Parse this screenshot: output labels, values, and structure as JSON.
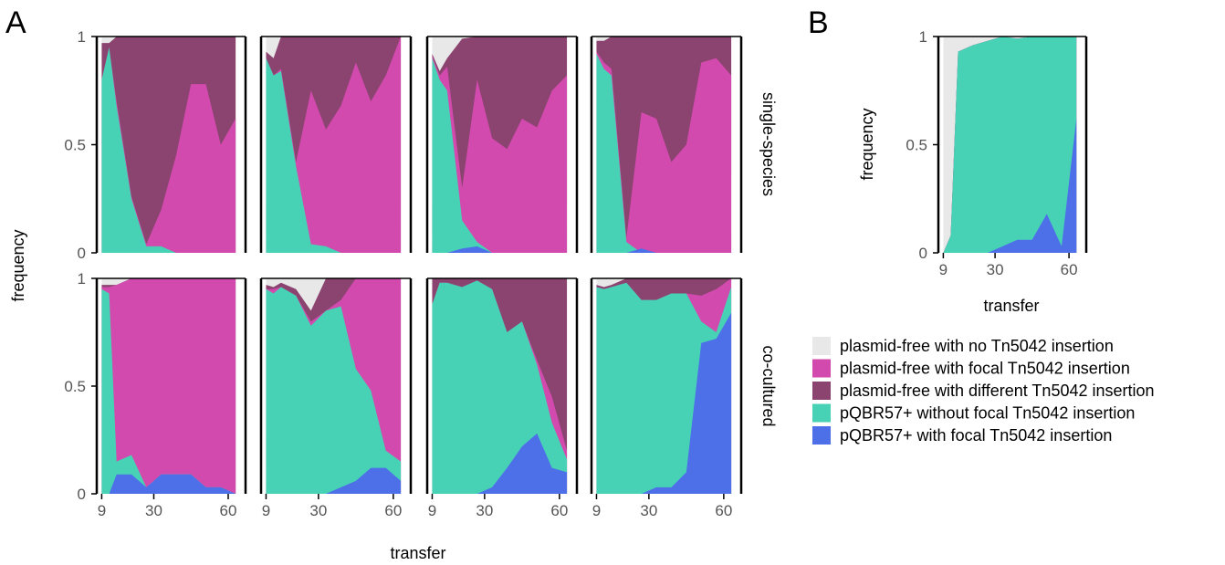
{
  "panel_labels": {
    "a": "A",
    "b": "B"
  },
  "axis": {
    "y_label": "frequency",
    "x_label": "transfer",
    "y_ticks": [
      "0",
      "0.5",
      "1"
    ],
    "x_ticks": [
      "9",
      "30",
      "60"
    ]
  },
  "facets": {
    "rows": [
      "single-species",
      "co-cultured"
    ]
  },
  "legend": [
    {
      "label": "plasmid-free with no Tn5042 insertion",
      "color": "#e8e8e8"
    },
    {
      "label": "plasmid-free with focal Tn5042 insertion",
      "color": "#d24aad"
    },
    {
      "label": "plasmid-free with different Tn5042 insertion",
      "color": "#8b4370"
    },
    {
      "label": "pQBR57+ without focal Tn5042 insertion",
      "color": "#48d2b5"
    },
    {
      "label": "pQBR57+ with focal Tn5042 insertion",
      "color": "#4d6fe8"
    }
  ],
  "chart_data": {
    "type": "area",
    "stacked": true,
    "stack_order_bottom_to_top": [
      "pQBR57+ with focal Tn5042 insertion",
      "pQBR57+ without focal Tn5042 insertion",
      "plasmid-free with focal Tn5042 insertion",
      "plasmid-free with different Tn5042 insertion",
      "plasmid-free with no Tn5042 insertion"
    ],
    "colors": [
      "#4d6fe8",
      "#48d2b5",
      "#d24aad",
      "#8b4370",
      "#e8e8e8"
    ],
    "xlim": [
      7,
      67
    ],
    "ylim": [
      0,
      1
    ],
    "xticks": [
      9,
      30,
      60
    ],
    "yticks": [
      0,
      0.5,
      1
    ],
    "xlabel": "transfer",
    "ylabel": "frequency",
    "panels": [
      {
        "row": "single-species",
        "col": 1,
        "x": [
          9,
          12,
          15,
          21,
          27,
          33,
          39,
          45,
          51,
          57,
          63
        ],
        "cumulative": [
          [
            0,
            0,
            0,
            0,
            0,
            0,
            0,
            0,
            0,
            0,
            0
          ],
          [
            0.8,
            0.95,
            0.68,
            0.25,
            0.03,
            0.03,
            0,
            0,
            0,
            0,
            0
          ],
          [
            0.8,
            0.95,
            0.7,
            0.26,
            0.04,
            0.2,
            0.45,
            0.78,
            0.78,
            0.5,
            0.62
          ],
          [
            0.97,
            0.97,
            1,
            1,
            1,
            1,
            1,
            1,
            1,
            1,
            1
          ],
          [
            1,
            1,
            1,
            1,
            1,
            1,
            1,
            1,
            1,
            1,
            1
          ]
        ]
      },
      {
        "row": "single-species",
        "col": 2,
        "x": [
          9,
          12,
          15,
          21,
          27,
          33,
          39,
          45,
          51,
          57,
          63
        ],
        "cumulative": [
          [
            0,
            0,
            0,
            0,
            0,
            0,
            0,
            0,
            0,
            0,
            0
          ],
          [
            0.9,
            0.82,
            0.84,
            0.4,
            0.04,
            0.03,
            0,
            0,
            0,
            0,
            0
          ],
          [
            0.9,
            0.82,
            0.85,
            0.42,
            0.75,
            0.57,
            0.68,
            0.88,
            0.7,
            0.82,
            1
          ],
          [
            0.93,
            0.9,
            1,
            1,
            1,
            1,
            1,
            1,
            1,
            1,
            1
          ],
          [
            1,
            1,
            1,
            1,
            1,
            1,
            1,
            1,
            1,
            1,
            1
          ]
        ]
      },
      {
        "row": "single-species",
        "col": 3,
        "x": [
          9,
          12,
          15,
          21,
          27,
          33,
          39,
          45,
          51,
          57,
          63
        ],
        "cumulative": [
          [
            0,
            0,
            0,
            0.02,
            0.03,
            0,
            0,
            0,
            0,
            0,
            0
          ],
          [
            0.9,
            0.8,
            0.75,
            0.15,
            0.05,
            0,
            0,
            0,
            0,
            0,
            0
          ],
          [
            0.91,
            0.82,
            0.86,
            0.3,
            0.8,
            0.53,
            0.48,
            0.62,
            0.58,
            0.75,
            0.82
          ],
          [
            0.92,
            0.84,
            0.9,
            0.99,
            1,
            1,
            1,
            1,
            1,
            1,
            1
          ],
          [
            1,
            1,
            1,
            1,
            1,
            1,
            1,
            1,
            1,
            1,
            1
          ]
        ]
      },
      {
        "row": "single-species",
        "col": 4,
        "x": [
          9,
          12,
          15,
          21,
          27,
          33,
          39,
          45,
          51,
          57,
          63
        ],
        "cumulative": [
          [
            0,
            0,
            0,
            0,
            0.02,
            0,
            0,
            0,
            0,
            0,
            0
          ],
          [
            0.92,
            0.85,
            0.82,
            0.05,
            0,
            0,
            0,
            0,
            0,
            0,
            0
          ],
          [
            0.93,
            0.88,
            0.85,
            0.07,
            0.65,
            0.62,
            0.42,
            0.5,
            0.88,
            0.9,
            0.82
          ],
          [
            0.98,
            0.98,
            1,
            1,
            1,
            1,
            1,
            1,
            1,
            1,
            1
          ],
          [
            1,
            1,
            1,
            1,
            1,
            1,
            1,
            1,
            1,
            1,
            1
          ]
        ]
      },
      {
        "row": "co-cultured",
        "col": 1,
        "x": [
          9,
          12,
          15,
          21,
          27,
          33,
          39,
          45,
          51,
          57,
          63
        ],
        "cumulative": [
          [
            0,
            0,
            0.09,
            0.09,
            0.03,
            0.09,
            0.09,
            0.09,
            0.03,
            0.03,
            0
          ],
          [
            0.95,
            0.93,
            0.15,
            0.18,
            0.03,
            0.09,
            0.09,
            0.09,
            0.03,
            0.03,
            0
          ],
          [
            0.96,
            0.96,
            0.97,
            1,
            1,
            1,
            1,
            1,
            1,
            1,
            1
          ],
          [
            0.97,
            0.97,
            0.97,
            1,
            1,
            1,
            1,
            1,
            1,
            1,
            1
          ],
          [
            1,
            1,
            1,
            1,
            1,
            1,
            1,
            1,
            1,
            1,
            1
          ]
        ]
      },
      {
        "row": "co-cultured",
        "col": 2,
        "x": [
          9,
          12,
          15,
          21,
          27,
          33,
          39,
          45,
          51,
          57,
          63
        ],
        "cumulative": [
          [
            0,
            0,
            0,
            0,
            0,
            0,
            0.03,
            0.06,
            0.12,
            0.12,
            0.06
          ],
          [
            0.95,
            0.93,
            0.96,
            0.92,
            0.78,
            0.85,
            0.87,
            0.58,
            0.48,
            0.2,
            0.15
          ],
          [
            0.95,
            0.95,
            0.96,
            0.92,
            0.8,
            0.85,
            0.9,
            1,
            1,
            1,
            1
          ],
          [
            0.97,
            0.96,
            0.98,
            0.95,
            0.85,
            1,
            1,
            1,
            1,
            1,
            1
          ],
          [
            1,
            1,
            1,
            1,
            1,
            1,
            1,
            1,
            1,
            1,
            1
          ]
        ]
      },
      {
        "row": "co-cultured",
        "col": 3,
        "x": [
          9,
          12,
          15,
          21,
          27,
          33,
          39,
          45,
          51,
          57,
          63
        ],
        "cumulative": [
          [
            0,
            0,
            0,
            0,
            0,
            0.03,
            0.12,
            0.22,
            0.28,
            0.12,
            0.1
          ],
          [
            0.88,
            0.98,
            0.98,
            0.96,
            0.99,
            0.95,
            0.75,
            0.8,
            0.6,
            0.33,
            0.16
          ],
          [
            0.88,
            0.98,
            0.98,
            0.96,
            0.99,
            0.95,
            0.75,
            0.8,
            0.62,
            0.45,
            0.2
          ],
          [
            1,
            1,
            1,
            1,
            1,
            1,
            1,
            1,
            1,
            1,
            1
          ],
          [
            1,
            1,
            1,
            1,
            1,
            1,
            1,
            1,
            1,
            1,
            1
          ]
        ]
      },
      {
        "row": "co-cultured",
        "col": 4,
        "x": [
          9,
          12,
          15,
          21,
          27,
          33,
          39,
          45,
          51,
          57,
          63
        ],
        "cumulative": [
          [
            0,
            0,
            0,
            0,
            0,
            0.03,
            0.03,
            0.1,
            0.7,
            0.72,
            0.84
          ],
          [
            0.96,
            0.95,
            0.96,
            0.98,
            0.9,
            0.9,
            0.93,
            0.93,
            0.8,
            0.75,
            0.96
          ],
          [
            0.96,
            0.95,
            0.96,
            0.98,
            0.9,
            0.9,
            0.93,
            0.93,
            0.92,
            0.95,
            1
          ],
          [
            0.97,
            0.96,
            0.97,
            1,
            1,
            1,
            1,
            1,
            1,
            1,
            1
          ],
          [
            1,
            1,
            1,
            1,
            1,
            1,
            1,
            1,
            1,
            1,
            1
          ]
        ]
      },
      {
        "row": "B",
        "col": 1,
        "x": [
          9,
          12,
          15,
          21,
          27,
          33,
          39,
          45,
          51,
          57,
          63
        ],
        "cumulative": [
          [
            0,
            0,
            0,
            0,
            0,
            0.03,
            0.06,
            0.06,
            0.18,
            0.03,
            0.62
          ],
          [
            0,
            0.08,
            0.93,
            0.96,
            0.98,
            1,
            0.99,
            1,
            1,
            1,
            1
          ],
          [
            0,
            0.08,
            0.93,
            0.96,
            0.98,
            1,
            0.99,
            1,
            1,
            1,
            1
          ],
          [
            0,
            0.08,
            0.93,
            0.96,
            0.98,
            1,
            0.99,
            1,
            1,
            1,
            1
          ],
          [
            1,
            1,
            1,
            1,
            1,
            1,
            1,
            1,
            1,
            1,
            1
          ]
        ]
      }
    ]
  }
}
